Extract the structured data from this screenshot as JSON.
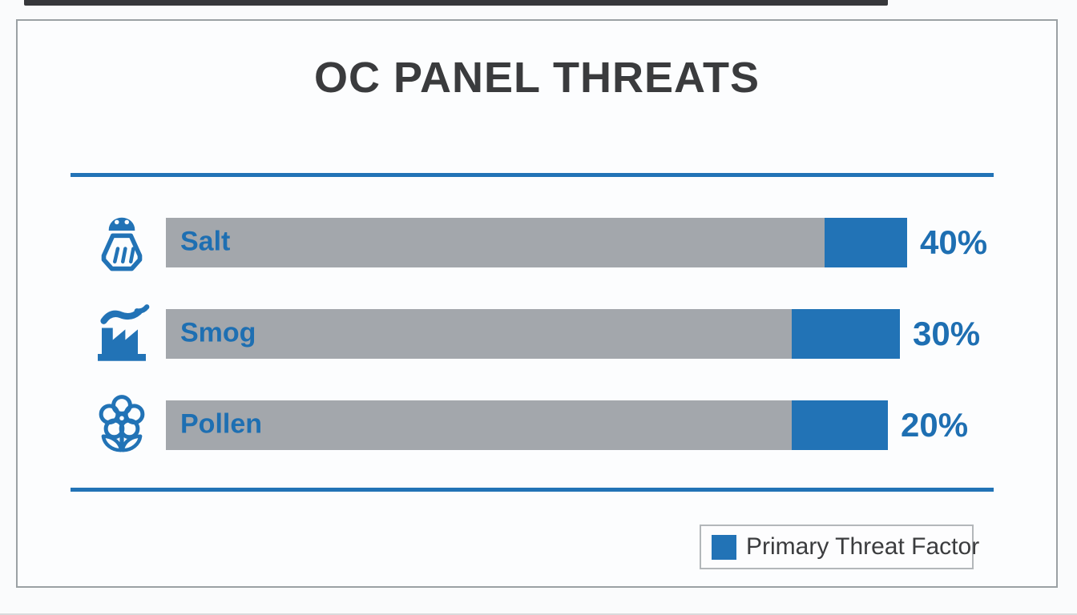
{
  "title": "OC PANEL THREATS",
  "colors": {
    "accent_blue": "#2273b6",
    "bar_gray": "#a3a7ac",
    "title_text": "#3a3b3d",
    "frame_border": "#9ba1a4"
  },
  "chart_data": {
    "type": "bar",
    "orientation": "horizontal",
    "title": "OC PANEL THREATS",
    "categories": [
      "Salt",
      "Smog",
      "Pollen"
    ],
    "values": [
      40,
      30,
      20
    ],
    "unit": "%",
    "value_labels": [
      "40%",
      "30%",
      "20%"
    ],
    "row_icons": [
      "salt-shaker",
      "factory-smog",
      "pollen-flower"
    ],
    "legend": {
      "label": "Primary Threat Factor",
      "swatch_color": "#2273b6",
      "position": "bottom-right"
    },
    "bar_style": {
      "track_color": "#a3a7ac",
      "primary_segment_color": "#2273b6",
      "note": "blue primary-threat segment at right end of each gray bar"
    },
    "grid": false
  },
  "rows": [
    {
      "label": "Salt",
      "value_label": "40%",
      "track_width": 822,
      "segment_width": 103
    },
    {
      "label": "Smog",
      "value_label": "30%",
      "track_width": 781,
      "segment_width": 135
    },
    {
      "label": "Pollen",
      "value_label": "20%",
      "track_width": 781,
      "segment_width": 120
    }
  ],
  "legend": {
    "label": "Primary Threat Factor"
  }
}
